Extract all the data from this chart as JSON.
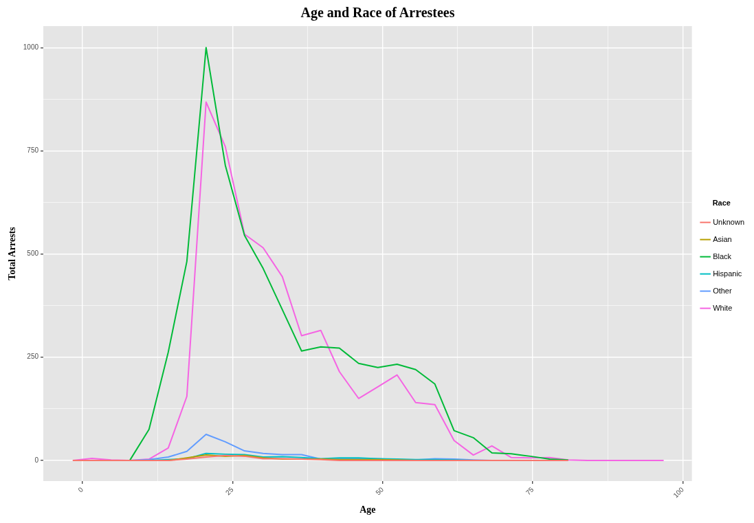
{
  "chart_data": {
    "type": "line",
    "title": "Age and Race of Arrestees",
    "xlabel": "Age",
    "ylabel": "Total Arrests",
    "legend_title": "Race",
    "legend": "right",
    "grid": true,
    "marker": "none",
    "line_style": "solid",
    "x": [
      -1.6,
      1.6,
      4.8,
      7.9,
      11.1,
      14.3,
      17.4,
      20.6,
      23.8,
      27,
      30.1,
      33.3,
      36.5,
      39.7,
      42.8,
      46,
      49.2,
      52.4,
      55.5,
      58.7,
      61.9,
      65.1,
      68.2,
      71.4,
      74.6,
      77.8,
      80.9,
      84.1,
      87.3,
      90.5,
      93.6,
      96.8
    ],
    "xlim": [
      -6.5,
      101.5
    ],
    "xticks": [
      0,
      {
        "value": 12.5,
        "label": null
      },
      25,
      {
        "value": 37.5,
        "label": null
      },
      50,
      {
        "value": 62.5,
        "label": null
      },
      75,
      {
        "value": 87.5,
        "label": null
      },
      100
    ],
    "ylim": [
      -50,
      1052
    ],
    "yticks": [
      0,
      {
        "value": 125,
        "label": null
      },
      250,
      {
        "value": 375,
        "label": null
      },
      500,
      {
        "value": 625,
        "label": null
      },
      750,
      {
        "value": 875,
        "label": null
      },
      1000
    ],
    "series": [
      {
        "name": "Unknown",
        "color": "#f8766d",
        "values": [
          0,
          0,
          0,
          0,
          0,
          0,
          3,
          8,
          12,
          10,
          4,
          4,
          3,
          2,
          0,
          0,
          0,
          0,
          0,
          0,
          0,
          0,
          0,
          0,
          0,
          0,
          0,
          null,
          null,
          null,
          null,
          null
        ]
      },
      {
        "name": "Asian",
        "color": "#b79f00",
        "values": [
          null,
          null,
          null,
          null,
          null,
          0,
          6,
          13,
          10,
          12,
          6,
          3,
          3,
          3,
          2,
          2,
          2,
          1,
          0,
          null,
          null,
          null,
          null,
          null,
          null,
          null,
          null,
          null,
          null,
          null,
          null,
          null
        ]
      },
      {
        "name": "Black",
        "color": "#00ba38",
        "values": [
          null,
          null,
          null,
          0,
          75,
          262,
          482,
          1000,
          715,
          545,
          465,
          365,
          265,
          275,
          272,
          235,
          225,
          233,
          220,
          185,
          72,
          55,
          18,
          16,
          10,
          3,
          1,
          null,
          null,
          null,
          null,
          null
        ]
      },
      {
        "name": "Hispanic",
        "color": "#00bfc4",
        "values": [
          null,
          null,
          null,
          0,
          0,
          2,
          4,
          17,
          15,
          14,
          8,
          9,
          7,
          4,
          6,
          6,
          4,
          3,
          2,
          2,
          1,
          0,
          null,
          null,
          null,
          null,
          null,
          null,
          null,
          null,
          null,
          null
        ]
      },
      {
        "name": "Other",
        "color": "#619cff",
        "values": [
          null,
          null,
          0,
          0,
          2,
          8,
          22,
          63,
          45,
          23,
          17,
          14,
          14,
          3,
          4,
          5,
          4,
          2,
          1,
          4,
          3,
          1,
          0,
          0,
          null,
          null,
          null,
          null,
          null,
          null,
          null,
          null
        ]
      },
      {
        "name": "White",
        "color": "#f564e3",
        "values": [
          0,
          5,
          1,
          0,
          3,
          30,
          155,
          868,
          760,
          548,
          515,
          445,
          302,
          315,
          215,
          150,
          178,
          207,
          140,
          135,
          48,
          13,
          35,
          7,
          6,
          7,
          1,
          0,
          0,
          0,
          0,
          0
        ]
      }
    ]
  }
}
